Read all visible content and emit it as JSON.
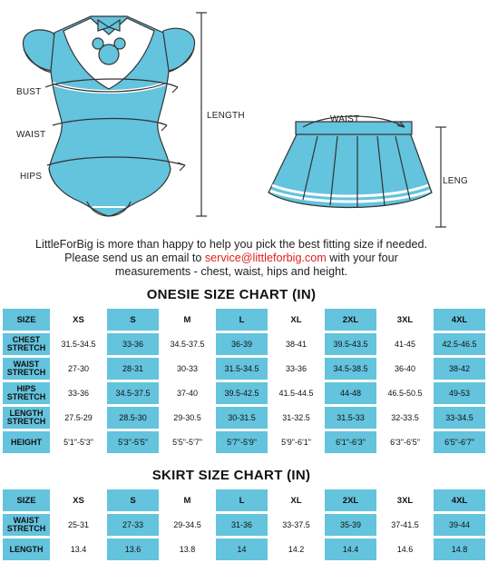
{
  "illustration": {
    "onesie_labels": {
      "bust": "BUST",
      "waist": "WAIST",
      "hips": "HIPS",
      "length": "LENGTH"
    },
    "skirt_labels": {
      "waist": "WAIST",
      "length": "LENG"
    },
    "colors": {
      "garment": "#64c3dd",
      "trim": "#ffffff",
      "outline": "#333333"
    }
  },
  "info": {
    "line1": "LittleForBig is more than happy to help you pick the best fitting size if needed.",
    "line2_prefix": "Please send us an email to ",
    "email": "service@littleforbig.com",
    "line2_suffix": " with your four",
    "line3": "measurements - chest, waist, hips and height."
  },
  "onesie": {
    "title": "ONESIE SIZE CHART (IN)",
    "header": [
      "SIZE",
      "XS",
      "S",
      "M",
      "L",
      "XL",
      "2XL",
      "3XL",
      "4XL"
    ],
    "rows": [
      {
        "label_top": "CHEST",
        "label_bottom": "STRETCH",
        "values": [
          "31.5-34.5",
          "33-36",
          "34.5-37.5",
          "36-39",
          "38-41",
          "39.5-43.5",
          "41-45",
          "42.5-46.5"
        ]
      },
      {
        "label_top": "WAIST",
        "label_bottom": "STRETCH",
        "values": [
          "27-30",
          "28-31",
          "30-33",
          "31.5-34.5",
          "33-36",
          "34.5-38.5",
          "36-40",
          "38-42"
        ]
      },
      {
        "label_top": "HIPS",
        "label_bottom": "STRETCH",
        "values": [
          "33-36",
          "34.5-37.5",
          "37-40",
          "39.5-42.5",
          "41.5-44.5",
          "44-48",
          "46.5-50.5",
          "49-53"
        ]
      },
      {
        "label_top": "LENGTH",
        "label_bottom": "STRETCH",
        "values": [
          "27.5-29",
          "28.5-30",
          "29-30.5",
          "30-31.5",
          "31-32.5",
          "31.5-33",
          "32-33.5",
          "33-34.5"
        ]
      },
      {
        "label_top": "HEIGHT",
        "label_bottom": "",
        "values": [
          "5'1\"-5'3\"",
          "5'3\"-5'5\"",
          "5'5\"-5'7\"",
          "5'7\"-5'9\"",
          "5'9\"-6'1\"",
          "6'1\"-6'3\"",
          "6'3\"-6'5\"",
          "6'5\"-6'7\""
        ]
      }
    ]
  },
  "skirt": {
    "title": "SKIRT SIZE CHART (IN)",
    "header": [
      "SIZE",
      "XS",
      "S",
      "M",
      "L",
      "XL",
      "2XL",
      "3XL",
      "4XL"
    ],
    "rows": [
      {
        "label_top": "WAIST",
        "label_bottom": "STRETCH",
        "values": [
          "25-31",
          "27-33",
          "29-34.5",
          "31-36",
          "33-37.5",
          "35-39",
          "37-41.5",
          "39-44"
        ]
      },
      {
        "label_top": "LENGTH",
        "label_bottom": "",
        "values": [
          "13.4",
          "13.6",
          "13.8",
          "14",
          "14.2",
          "14.4",
          "14.6",
          "14.8"
        ]
      }
    ]
  }
}
